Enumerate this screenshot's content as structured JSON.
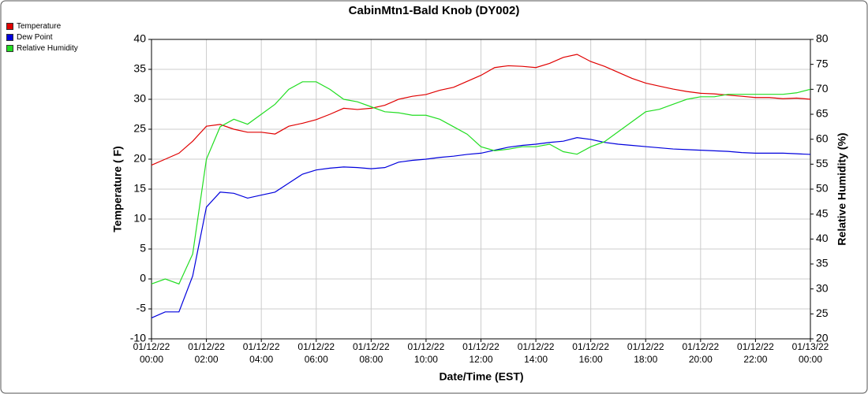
{
  "chart_data": {
    "type": "line",
    "title": "CabinMtn1-Bald Knob (DY002)",
    "x_label": "Date/Time (EST)",
    "y_label": "Temperature ( F)",
    "y2_label": "Relative Humidity (%)",
    "grid": true,
    "legend": "top-left",
    "x": [
      0,
      0.5,
      1,
      1.5,
      2,
      2.5,
      3,
      3.5,
      4,
      4.5,
      5,
      5.5,
      6,
      6.5,
      7,
      7.5,
      8,
      8.5,
      9,
      9.5,
      10,
      10.5,
      11,
      11.5,
      12,
      12.5,
      13,
      13.5,
      14,
      14.5,
      15,
      15.5,
      16,
      16.5,
      17,
      17.5,
      18,
      18.5,
      19,
      19.5,
      20,
      20.5,
      21,
      21.5,
      22,
      22.5,
      23,
      23.5,
      24
    ],
    "xlim": [
      0,
      24
    ],
    "xticks": [
      {
        "value": 0,
        "label": "01/12/22 00:00"
      },
      {
        "value": 2,
        "label": "01/12/22 02:00"
      },
      {
        "value": 4,
        "label": "01/12/22 04:00"
      },
      {
        "value": 6,
        "label": "01/12/22 06:00"
      },
      {
        "value": 8,
        "label": "01/12/22 08:00"
      },
      {
        "value": 10,
        "label": "01/12/22 10:00"
      },
      {
        "value": 12,
        "label": "01/12/22 12:00"
      },
      {
        "value": 14,
        "label": "01/12/22 14:00"
      },
      {
        "value": 16,
        "label": "01/12/22 16:00"
      },
      {
        "value": 18,
        "label": "01/12/22 18:00"
      },
      {
        "value": 20,
        "label": "01/12/22 20:00"
      },
      {
        "value": 22,
        "label": "01/12/22 22:00"
      },
      {
        "value": 24,
        "label": "01/13/22 00:00"
      }
    ],
    "ylim": [
      -10,
      40
    ],
    "yticks": [
      -10,
      -5,
      0,
      5,
      10,
      15,
      20,
      25,
      30,
      35,
      40
    ],
    "y2lim": [
      20,
      80
    ],
    "y2ticks": [
      20,
      25,
      30,
      35,
      40,
      45,
      50,
      55,
      60,
      65,
      70,
      75,
      80
    ],
    "series": [
      {
        "name": "Temperature",
        "color": "#e00000",
        "values": [
          19,
          20,
          21,
          23,
          25.5,
          25.8,
          25,
          24.5,
          24.5,
          24.2,
          25.5,
          26,
          26.6,
          27.5,
          28.5,
          28.3,
          28.5,
          29,
          30,
          30.5,
          30.8,
          31.5,
          32,
          33,
          34,
          35.3,
          35.6,
          35.5,
          35.3,
          36,
          37,
          37.5,
          36.3,
          35.5,
          34.5,
          33.5,
          32.7,
          32.2,
          31.7,
          31.3,
          31,
          30.9,
          30.7,
          30.5,
          30.3,
          30.3,
          30.1,
          30.2,
          30
        ]
      },
      {
        "name": "Dew Point",
        "color": "#0000dd",
        "values": [
          -6.5,
          -5.5,
          -5.5,
          0.5,
          12,
          14.5,
          14.3,
          13.5,
          14,
          14.5,
          16,
          17.5,
          18.2,
          18.5,
          18.7,
          18.6,
          18.4,
          18.6,
          19.5,
          19.8,
          20,
          20.3,
          20.5,
          20.8,
          21,
          21.5,
          22,
          22.3,
          22.5,
          22.8,
          23,
          23.6,
          23.3,
          22.8,
          22.5,
          22.3,
          22.1,
          21.9,
          21.7,
          21.6,
          21.5,
          21.4,
          21.3,
          21.1,
          21,
          21,
          21,
          20.9,
          20.8
        ]
      },
      {
        "name": "Relative Humidity",
        "color": "#22dd22",
        "axis": "y2",
        "values": [
          31,
          32,
          31,
          37,
          56,
          62.5,
          64,
          63,
          65,
          67,
          70,
          71.5,
          71.5,
          70,
          68,
          67.5,
          66.5,
          65.5,
          65.3,
          64.8,
          64.8,
          64,
          62.5,
          61,
          58.5,
          57.7,
          58,
          58.5,
          58.5,
          59,
          57.5,
          57,
          58.5,
          59.5,
          61.5,
          63.5,
          65.5,
          66,
          67,
          68,
          68.5,
          68.5,
          69,
          69,
          69,
          69,
          69,
          69.3,
          70
        ]
      }
    ]
  }
}
